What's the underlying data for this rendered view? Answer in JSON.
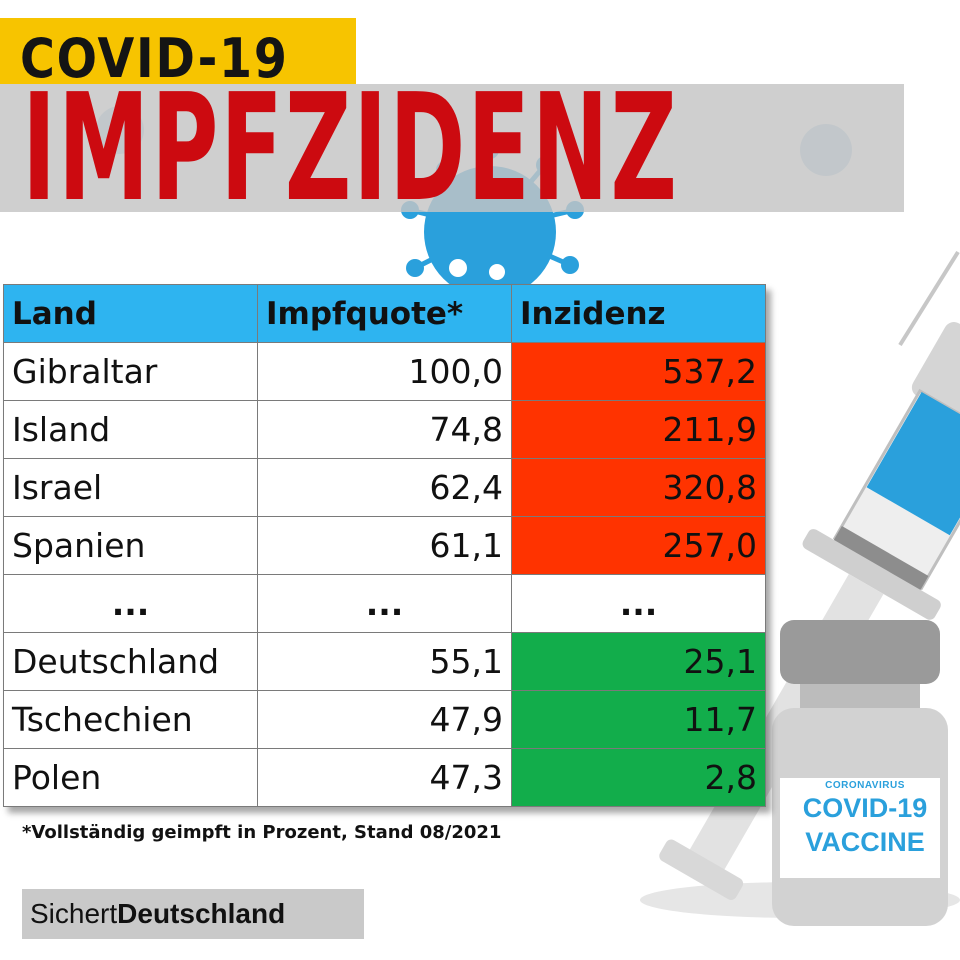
{
  "header": {
    "covid_badge": "COVID-19",
    "title": "IMPFZIDENZ"
  },
  "table": {
    "headers": [
      "Land",
      "Impfquote*",
      "Inzidenz"
    ],
    "rows": [
      {
        "land": "Gibraltar",
        "impfquote": "100,0",
        "inzidenz": "537,2",
        "color": "#ff3300"
      },
      {
        "land": "Island",
        "impfquote": "74,8",
        "inzidenz": "211,9",
        "color": "#ff3300"
      },
      {
        "land": "Israel",
        "impfquote": "62,4",
        "inzidenz": "320,8",
        "color": "#ff3300"
      },
      {
        "land": "Spanien",
        "impfquote": "61,1",
        "inzidenz": "257,0",
        "color": "#ff3300"
      },
      {
        "land": "...",
        "impfquote": "...",
        "inzidenz": "...",
        "color": "#ffffff"
      },
      {
        "land": "Deutschland",
        "impfquote": "55,1",
        "inzidenz": "25,1",
        "color": "#12ad4b"
      },
      {
        "land": "Tschechien",
        "impfquote": "47,9",
        "inzidenz": "11,7",
        "color": "#12ad4b"
      },
      {
        "land": "Polen",
        "impfquote": "47,3",
        "inzidenz": "2,8",
        "color": "#12ad4b"
      }
    ]
  },
  "footnote": "*Vollständig geimpft in Prozent, Stand 08/2021",
  "source": {
    "prefix": "Sichert",
    "bold": "Deutschland"
  },
  "vial_label": {
    "small": "CORONAVIRUS",
    "line1": "COVID-19",
    "line2": "VACCINE"
  },
  "colors": {
    "badge": "#f7c400",
    "title_red": "#cc0a10",
    "header_blue": "#2eb4f0",
    "high_incidence": "#ff3300",
    "low_incidence": "#12ad4b",
    "vaccine_blue": "#2aa0dc"
  },
  "decor": [
    "virus-icon",
    "syringe-icon",
    "vaccine-vial-icon"
  ]
}
